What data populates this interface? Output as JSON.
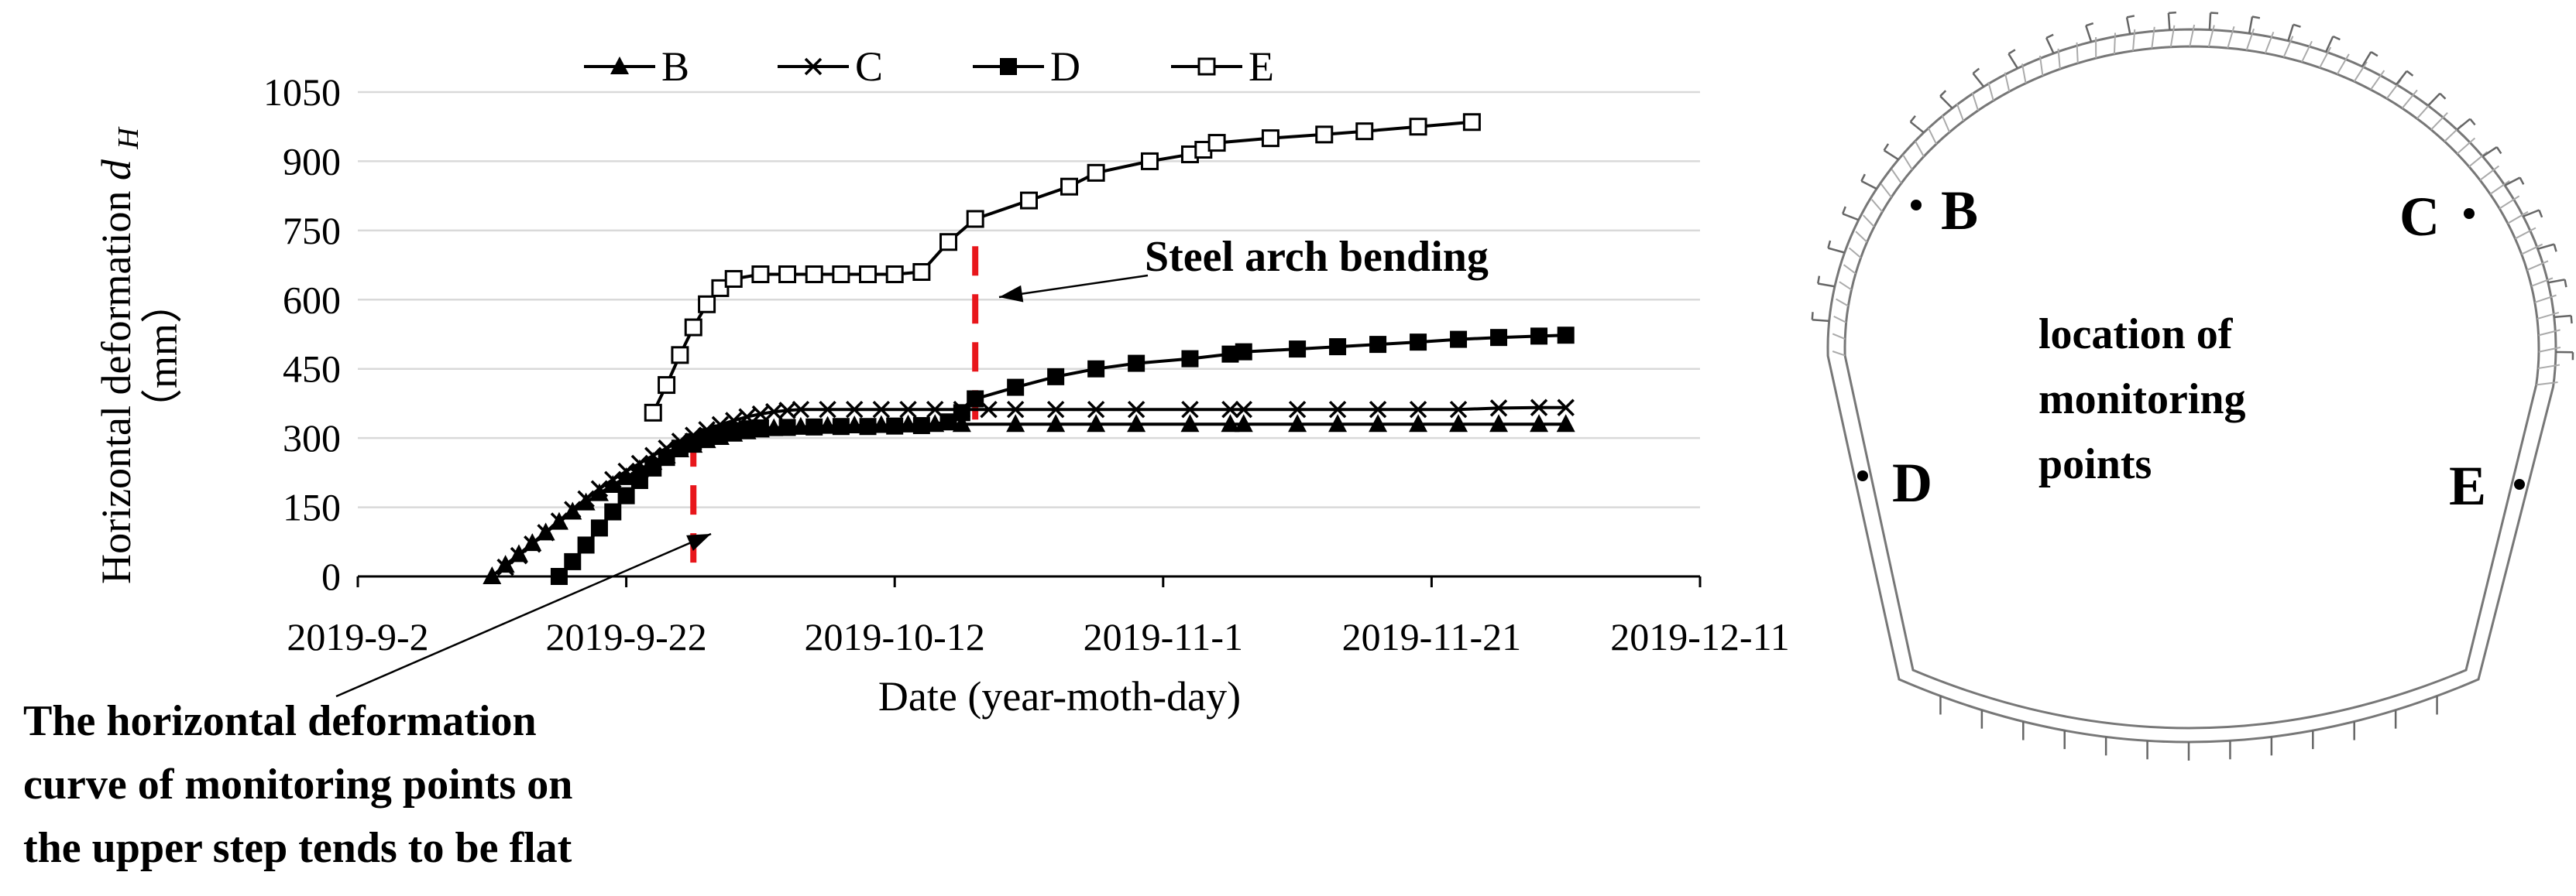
{
  "chart_data": {
    "type": "line",
    "title": "",
    "xlabel": "Date (year-moth-day)",
    "ylabel": "Horizontal deformation",
    "ylabel_symbol": "d",
    "ylabel_subscript": "H",
    "ylabel_unit": "（mm）",
    "xlim": [
      "2019-09-02",
      "2019-12-11"
    ],
    "ylim": [
      0,
      1050
    ],
    "x_ticks": [
      {
        "date": "2019-09-02",
        "label": "2019-9-2"
      },
      {
        "date": "2019-09-22",
        "label": "2019-9-22"
      },
      {
        "date": "2019-10-12",
        "label": "2019-10-12"
      },
      {
        "date": "2019-11-01",
        "label": "2019-11-1"
      },
      {
        "date": "2019-11-21",
        "label": "2019-11-21"
      },
      {
        "date": "2019-12-11",
        "label": "2019-12-11"
      }
    ],
    "y_ticks": [
      0,
      150,
      300,
      450,
      600,
      750,
      900,
      1050
    ],
    "grid": "horizontal",
    "legend_position": "top",
    "series": [
      {
        "name": "B",
        "marker": "triangle",
        "points": [
          [
            "2019-09-12",
            0
          ],
          [
            "2019-09-13",
            25
          ],
          [
            "2019-09-14",
            48
          ],
          [
            "2019-09-15",
            72
          ],
          [
            "2019-09-16",
            95
          ],
          [
            "2019-09-17",
            118
          ],
          [
            "2019-09-18",
            140
          ],
          [
            "2019-09-19",
            160
          ],
          [
            "2019-09-20",
            180
          ],
          [
            "2019-09-21",
            198
          ],
          [
            "2019-09-22",
            215
          ],
          [
            "2019-09-23",
            232
          ],
          [
            "2019-09-24",
            248
          ],
          [
            "2019-09-25",
            262
          ],
          [
            "2019-09-26",
            275
          ],
          [
            "2019-09-27",
            285
          ],
          [
            "2019-09-28",
            295
          ],
          [
            "2019-09-29",
            302
          ],
          [
            "2019-09-30",
            309
          ],
          [
            "2019-10-01",
            314
          ],
          [
            "2019-10-02",
            318
          ],
          [
            "2019-10-03",
            321
          ],
          [
            "2019-10-05",
            324
          ],
          [
            "2019-10-07",
            326
          ],
          [
            "2019-10-09",
            327
          ],
          [
            "2019-10-11",
            328
          ],
          [
            "2019-10-13",
            329
          ],
          [
            "2019-10-15",
            330
          ],
          [
            "2019-10-17",
            330
          ],
          [
            "2019-10-21",
            330
          ],
          [
            "2019-10-24",
            330
          ],
          [
            "2019-10-27",
            330
          ],
          [
            "2019-10-30",
            330
          ],
          [
            "2019-11-03",
            330
          ],
          [
            "2019-11-06",
            330
          ],
          [
            "2019-11-07",
            330
          ],
          [
            "2019-11-11",
            330
          ],
          [
            "2019-11-14",
            330
          ],
          [
            "2019-11-17",
            330
          ],
          [
            "2019-11-20",
            330
          ],
          [
            "2019-11-23",
            330
          ],
          [
            "2019-11-26",
            330
          ],
          [
            "2019-11-29",
            330
          ],
          [
            "2019-12-01",
            330
          ]
        ]
      },
      {
        "name": "C",
        "marker": "x",
        "points": [
          [
            "2019-09-13",
            20
          ],
          [
            "2019-09-14",
            45
          ],
          [
            "2019-09-15",
            70
          ],
          [
            "2019-09-16",
            95
          ],
          [
            "2019-09-17",
            120
          ],
          [
            "2019-09-18",
            145
          ],
          [
            "2019-09-19",
            168
          ],
          [
            "2019-09-20",
            190
          ],
          [
            "2019-09-21",
            210
          ],
          [
            "2019-09-22",
            228
          ],
          [
            "2019-09-23",
            245
          ],
          [
            "2019-09-24",
            262
          ],
          [
            "2019-09-25",
            278
          ],
          [
            "2019-09-26",
            293
          ],
          [
            "2019-09-27",
            306
          ],
          [
            "2019-09-28",
            318
          ],
          [
            "2019-09-29",
            329
          ],
          [
            "2019-09-30",
            338
          ],
          [
            "2019-10-01",
            346
          ],
          [
            "2019-10-02",
            352
          ],
          [
            "2019-10-03",
            357
          ],
          [
            "2019-10-04",
            360
          ],
          [
            "2019-10-05",
            362
          ],
          [
            "2019-10-07",
            362
          ],
          [
            "2019-10-09",
            362
          ],
          [
            "2019-10-11",
            362
          ],
          [
            "2019-10-13",
            362
          ],
          [
            "2019-10-15",
            362
          ],
          [
            "2019-10-17",
            362
          ],
          [
            "2019-10-19",
            362
          ],
          [
            "2019-10-21",
            362
          ],
          [
            "2019-10-24",
            362
          ],
          [
            "2019-10-27",
            362
          ],
          [
            "2019-10-30",
            362
          ],
          [
            "2019-11-03",
            362
          ],
          [
            "2019-11-06",
            362
          ],
          [
            "2019-11-07",
            362
          ],
          [
            "2019-11-11",
            362
          ],
          [
            "2019-11-14",
            362
          ],
          [
            "2019-11-17",
            362
          ],
          [
            "2019-11-20",
            362
          ],
          [
            "2019-11-23",
            362
          ],
          [
            "2019-11-26",
            365
          ],
          [
            "2019-11-29",
            366
          ],
          [
            "2019-12-01",
            366
          ]
        ]
      },
      {
        "name": "D",
        "marker": "filled-square",
        "points": [
          [
            "2019-09-17",
            0
          ],
          [
            "2019-09-18",
            32
          ],
          [
            "2019-09-19",
            68
          ],
          [
            "2019-09-20",
            105
          ],
          [
            "2019-09-21",
            140
          ],
          [
            "2019-09-22",
            175
          ],
          [
            "2019-09-23",
            208
          ],
          [
            "2019-09-24",
            235
          ],
          [
            "2019-09-25",
            258
          ],
          [
            "2019-09-26",
            278
          ],
          [
            "2019-09-27",
            292
          ],
          [
            "2019-09-28",
            303
          ],
          [
            "2019-09-29",
            311
          ],
          [
            "2019-09-30",
            316
          ],
          [
            "2019-10-01",
            320
          ],
          [
            "2019-10-02",
            322
          ],
          [
            "2019-10-04",
            323
          ],
          [
            "2019-10-06",
            324
          ],
          [
            "2019-10-08",
            325
          ],
          [
            "2019-10-10",
            325
          ],
          [
            "2019-10-12",
            326
          ],
          [
            "2019-10-14",
            327
          ],
          [
            "2019-10-16",
            335
          ],
          [
            "2019-10-17",
            355
          ],
          [
            "2019-10-18",
            385
          ],
          [
            "2019-10-21",
            410
          ],
          [
            "2019-10-24",
            433
          ],
          [
            "2019-10-27",
            450
          ],
          [
            "2019-10-30",
            462
          ],
          [
            "2019-11-03",
            472
          ],
          [
            "2019-11-06",
            482
          ],
          [
            "2019-11-07",
            487
          ],
          [
            "2019-11-11",
            493
          ],
          [
            "2019-11-14",
            498
          ],
          [
            "2019-11-17",
            503
          ],
          [
            "2019-11-20",
            508
          ],
          [
            "2019-11-23",
            514
          ],
          [
            "2019-11-26",
            518
          ],
          [
            "2019-11-29",
            521
          ],
          [
            "2019-12-01",
            523
          ]
        ]
      },
      {
        "name": "E",
        "marker": "open-square",
        "points": [
          [
            "2019-09-24",
            355
          ],
          [
            "2019-09-25",
            415
          ],
          [
            "2019-09-26",
            480
          ],
          [
            "2019-09-27",
            540
          ],
          [
            "2019-09-28",
            590
          ],
          [
            "2019-09-29",
            625
          ],
          [
            "2019-09-30",
            645
          ],
          [
            "2019-10-02",
            655
          ],
          [
            "2019-10-04",
            655
          ],
          [
            "2019-10-06",
            655
          ],
          [
            "2019-10-08",
            655
          ],
          [
            "2019-10-10",
            655
          ],
          [
            "2019-10-12",
            655
          ],
          [
            "2019-10-14",
            660
          ],
          [
            "2019-10-16",
            725
          ],
          [
            "2019-10-18",
            775
          ],
          [
            "2019-10-22",
            815
          ],
          [
            "2019-10-25",
            845
          ],
          [
            "2019-10-27",
            875
          ],
          [
            "2019-10-31",
            900
          ],
          [
            "2019-11-03",
            915
          ],
          [
            "2019-11-04",
            925
          ],
          [
            "2019-11-05",
            940
          ],
          [
            "2019-11-09",
            950
          ],
          [
            "2019-11-13",
            958
          ],
          [
            "2019-11-16",
            965
          ],
          [
            "2019-11-20",
            975
          ],
          [
            "2019-11-24",
            985
          ]
        ]
      }
    ],
    "vertical_markers": [
      {
        "date": "2019-09-27",
        "from": 30,
        "to": 340,
        "color": "#e8161b",
        "style": "dashed"
      },
      {
        "date": "2019-10-18",
        "from": 340,
        "to": 770,
        "color": "#e8161b",
        "style": "dashed"
      }
    ],
    "annotations": [
      {
        "text": "Steel arch bending",
        "arrow_to": {
          "date": "2019-10-19",
          "value": 600
        }
      },
      {
        "lines": [
          "The horizontal deformation",
          "curve of monitoring points on",
          "the upper step tends to be flat"
        ],
        "arrow_to": {
          "date": "2019-09-28",
          "value": 60
        }
      }
    ]
  },
  "diagram": {
    "points": [
      "B",
      "C",
      "D",
      "E"
    ],
    "caption_lines": [
      "location of",
      "monitoring",
      "points"
    ]
  }
}
